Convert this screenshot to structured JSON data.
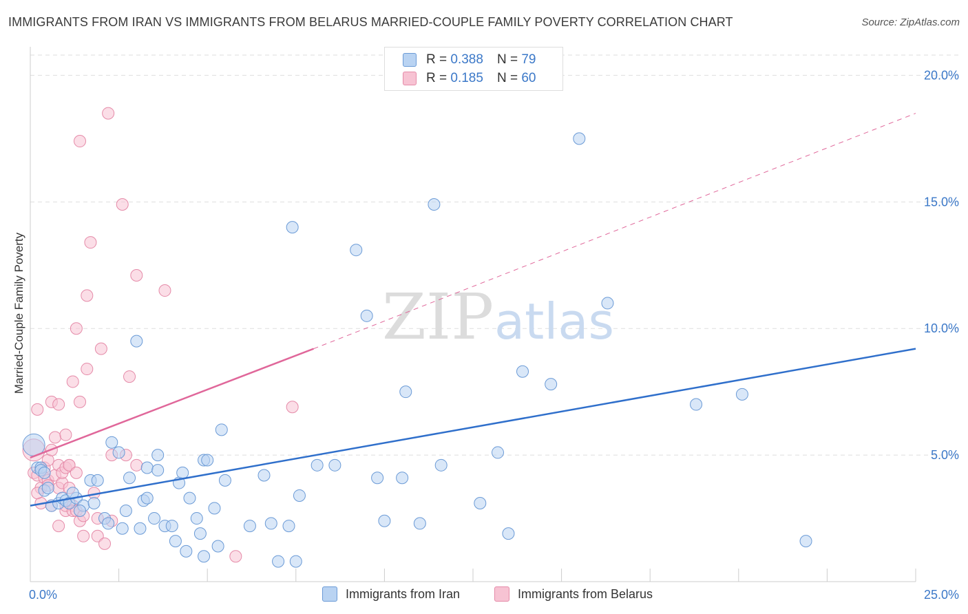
{
  "title": "IMMIGRANTS FROM IRAN VS IMMIGRANTS FROM BELARUS MARRIED-COUPLE FAMILY POVERTY CORRELATION CHART",
  "source": "Source: ZipAtlas.com",
  "legend": {
    "rows": [
      {
        "r_label": "R =",
        "r_value": "0.388",
        "n_label": "N =",
        "n_value": "79"
      },
      {
        "r_label": "R =",
        "r_value": "0.185",
        "n_label": "N =",
        "n_value": "60"
      }
    ]
  },
  "series_labels": [
    "Immigrants from Iran",
    "Immigrants from Belarus"
  ],
  "colors": {
    "iran_fill": "#b9d3f2",
    "iran_stroke": "#6a9ad6",
    "iran_line": "#2f6fcb",
    "belarus_fill": "#f7c3d3",
    "belarus_stroke": "#e58aa8",
    "belarus_line": "#e0679a",
    "axis_text": "#3b78c8",
    "grid": "#dddddd"
  },
  "watermark": {
    "zip": "ZIP",
    "atlas": "atlas"
  },
  "chart_data": {
    "type": "scatter",
    "xlabel": "",
    "ylabel": "Married-Couple Family Poverty",
    "xlim": [
      0,
      25
    ],
    "ylim": [
      0,
      20.8
    ],
    "x_tick_labels": [
      {
        "value": 0,
        "label": "0.0%"
      },
      {
        "value": 25,
        "label": "25.0%"
      }
    ],
    "y_tick_labels": [
      {
        "value": 5,
        "label": "5.0%"
      },
      {
        "value": 10,
        "label": "10.0%"
      },
      {
        "value": 15,
        "label": "15.0%"
      },
      {
        "value": 20,
        "label": "20.0%"
      }
    ],
    "grid": true,
    "legend_position": "top-center",
    "series": [
      {
        "name": "Immigrants from Iran",
        "trend": {
          "x": [
            0,
            25
          ],
          "y": [
            3.0,
            9.2
          ],
          "style": "solid"
        },
        "points": [
          [
            0.1,
            5.4
          ],
          [
            0.2,
            4.5
          ],
          [
            0.3,
            4.5
          ],
          [
            0.4,
            3.6
          ],
          [
            0.5,
            3.7
          ],
          [
            0.6,
            3.0
          ],
          [
            0.8,
            3.1
          ],
          [
            0.9,
            3.3
          ],
          [
            1.0,
            3.2
          ],
          [
            1.1,
            3.1
          ],
          [
            1.3,
            3.3
          ],
          [
            1.5,
            3.0
          ],
          [
            1.2,
            3.5
          ],
          [
            1.4,
            2.8
          ],
          [
            1.7,
            4.0
          ],
          [
            1.9,
            4.0
          ],
          [
            1.8,
            3.1
          ],
          [
            2.1,
            2.5
          ],
          [
            2.2,
            2.3
          ],
          [
            2.3,
            5.5
          ],
          [
            2.5,
            5.1
          ],
          [
            2.6,
            2.1
          ],
          [
            2.7,
            2.8
          ],
          [
            2.8,
            4.1
          ],
          [
            3.0,
            9.5
          ],
          [
            3.1,
            2.1
          ],
          [
            3.2,
            3.2
          ],
          [
            3.3,
            4.5
          ],
          [
            3.3,
            3.3
          ],
          [
            3.5,
            2.5
          ],
          [
            3.6,
            4.4
          ],
          [
            3.6,
            5.0
          ],
          [
            3.8,
            2.2
          ],
          [
            4.0,
            2.2
          ],
          [
            4.1,
            1.6
          ],
          [
            4.2,
            3.9
          ],
          [
            4.3,
            4.3
          ],
          [
            4.4,
            1.2
          ],
          [
            4.5,
            3.3
          ],
          [
            4.7,
            2.5
          ],
          [
            4.8,
            1.9
          ],
          [
            4.9,
            1.0
          ],
          [
            4.9,
            4.8
          ],
          [
            5.0,
            4.8
          ],
          [
            5.2,
            2.9
          ],
          [
            5.3,
            1.4
          ],
          [
            5.4,
            6.0
          ],
          [
            5.5,
            4.0
          ],
          [
            6.2,
            2.2
          ],
          [
            6.6,
            4.2
          ],
          [
            6.8,
            2.3
          ],
          [
            7.0,
            0.8
          ],
          [
            7.3,
            2.2
          ],
          [
            7.5,
            0.8
          ],
          [
            7.4,
            14.0
          ],
          [
            7.6,
            3.4
          ],
          [
            8.1,
            4.6
          ],
          [
            8.6,
            4.6
          ],
          [
            9.2,
            13.1
          ],
          [
            9.5,
            10.5
          ],
          [
            9.8,
            4.1
          ],
          [
            10.0,
            2.4
          ],
          [
            10.5,
            4.1
          ],
          [
            10.6,
            7.5
          ],
          [
            11.0,
            2.3
          ],
          [
            11.4,
            14.9
          ],
          [
            11.6,
            4.6
          ],
          [
            12.7,
            3.1
          ],
          [
            13.2,
            5.1
          ],
          [
            13.5,
            1.9
          ],
          [
            13.9,
            8.3
          ],
          [
            14.7,
            7.8
          ],
          [
            15.5,
            17.5
          ],
          [
            16.3,
            11.0
          ],
          [
            18.8,
            7.0
          ],
          [
            20.1,
            7.4
          ],
          [
            21.9,
            1.6
          ],
          [
            0.3,
            4.4
          ],
          [
            0.4,
            4.3
          ]
        ]
      },
      {
        "name": "Immigrants from Belarus",
        "trend": {
          "x": [
            0,
            8
          ],
          "y": [
            4.9,
            9.2
          ],
          "style": "solid",
          "extension": {
            "x": [
              8,
              25
            ],
            "y": [
              9.2,
              18.5
            ],
            "style": "dashed"
          }
        },
        "points": [
          [
            0.1,
            5.2
          ],
          [
            0.1,
            4.3
          ],
          [
            0.2,
            6.8
          ],
          [
            0.2,
            4.2
          ],
          [
            0.3,
            3.1
          ],
          [
            0.3,
            3.7
          ],
          [
            0.4,
            4.5
          ],
          [
            0.4,
            4.1
          ],
          [
            0.5,
            4.0
          ],
          [
            0.5,
            4.8
          ],
          [
            0.5,
            3.8
          ],
          [
            0.6,
            5.2
          ],
          [
            0.6,
            3.0
          ],
          [
            0.6,
            7.1
          ],
          [
            0.7,
            4.2
          ],
          [
            0.7,
            5.7
          ],
          [
            0.8,
            4.6
          ],
          [
            0.8,
            3.7
          ],
          [
            0.8,
            7.0
          ],
          [
            0.8,
            2.2
          ],
          [
            0.9,
            3.9
          ],
          [
            0.9,
            4.3
          ],
          [
            1.0,
            4.5
          ],
          [
            1.0,
            5.8
          ],
          [
            1.0,
            2.8
          ],
          [
            1.0,
            3.0
          ],
          [
            1.1,
            4.6
          ],
          [
            1.1,
            3.7
          ],
          [
            1.1,
            4.6
          ],
          [
            1.2,
            3.0
          ],
          [
            1.2,
            2.8
          ],
          [
            1.2,
            7.9
          ],
          [
            1.3,
            2.8
          ],
          [
            1.3,
            4.3
          ],
          [
            1.3,
            10.0
          ],
          [
            1.4,
            7.1
          ],
          [
            1.4,
            2.4
          ],
          [
            1.4,
            17.4
          ],
          [
            1.5,
            2.6
          ],
          [
            1.5,
            1.8
          ],
          [
            1.6,
            8.4
          ],
          [
            1.6,
            11.3
          ],
          [
            1.7,
            13.4
          ],
          [
            1.8,
            3.5
          ],
          [
            1.9,
            2.5
          ],
          [
            1.9,
            1.8
          ],
          [
            2.0,
            9.2
          ],
          [
            2.1,
            1.5
          ],
          [
            2.2,
            18.5
          ],
          [
            2.3,
            2.4
          ],
          [
            2.3,
            5.0
          ],
          [
            2.6,
            14.9
          ],
          [
            2.7,
            5.0
          ],
          [
            2.8,
            8.1
          ],
          [
            3.0,
            4.6
          ],
          [
            3.0,
            12.1
          ],
          [
            3.8,
            11.5
          ],
          [
            5.8,
            1.0
          ],
          [
            7.4,
            6.9
          ],
          [
            0.2,
            3.5
          ]
        ]
      }
    ]
  }
}
